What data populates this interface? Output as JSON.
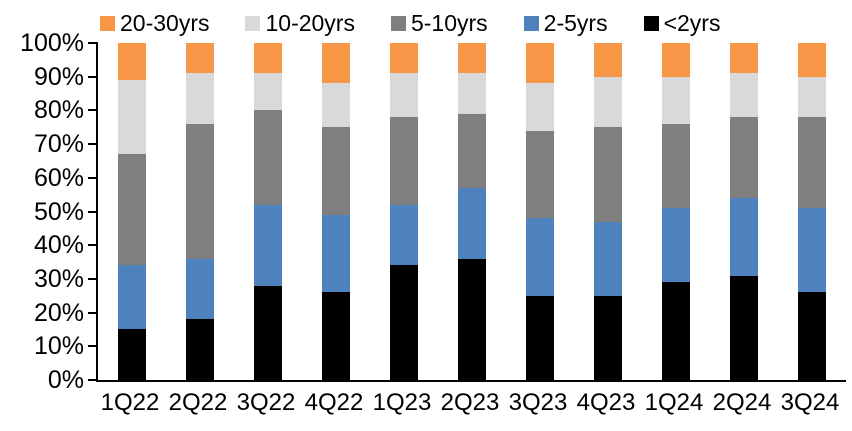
{
  "chart_data": {
    "type": "bar",
    "variant": "stacked-100-percent",
    "title": "",
    "xlabel": "",
    "ylabel": "",
    "ylim": [
      0,
      100
    ],
    "grid": false,
    "legend_position": "top",
    "axis_color": "#000000",
    "background_color": "#ffffff",
    "y_ticks": [
      "100%",
      "90%",
      "80%",
      "70%",
      "60%",
      "50%",
      "40%",
      "30%",
      "20%",
      "10%",
      "0%"
    ],
    "categories": [
      "1Q22",
      "2Q22",
      "3Q22",
      "4Q22",
      "1Q23",
      "2Q23",
      "3Q23",
      "4Q23",
      "1Q24",
      "2Q24",
      "3Q24"
    ],
    "series": [
      {
        "name": "20-30yrs",
        "color": "#F79646",
        "values": [
          11,
          9,
          9,
          12,
          9,
          9,
          12,
          10,
          10,
          9,
          10
        ]
      },
      {
        "name": "10-20yrs",
        "color": "#D9D9D9",
        "values": [
          22,
          15,
          11,
          13,
          13,
          12,
          14,
          15,
          14,
          13,
          12
        ]
      },
      {
        "name": "5-10yrs",
        "color": "#7F7F7F",
        "values": [
          33,
          40,
          28,
          26,
          26,
          22,
          26,
          28,
          25,
          24,
          27
        ]
      },
      {
        "name": "2-5yrs",
        "color": "#4F81BD",
        "values": [
          19,
          18,
          24,
          23,
          18,
          21,
          23,
          22,
          22,
          23,
          25
        ]
      },
      {
        "name": "<2yrs",
        "color": "#000000",
        "values": [
          15,
          18,
          28,
          26,
          34,
          36,
          25,
          25,
          29,
          31,
          26
        ]
      }
    ],
    "note": "series listed top-to-bottom of stack; values are percent of total per quarter"
  }
}
